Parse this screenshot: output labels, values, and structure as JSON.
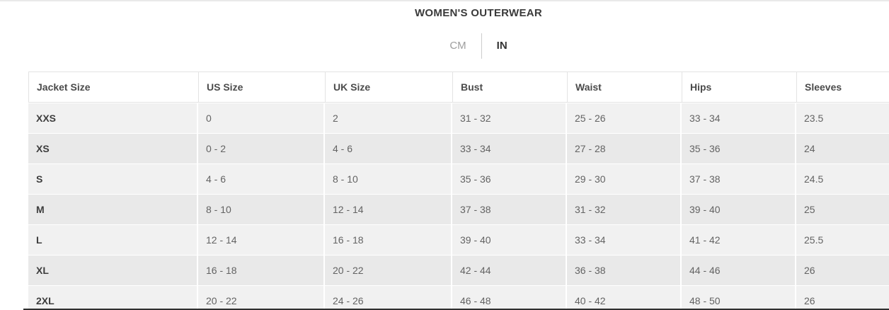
{
  "header": {
    "title": "WOMEN'S OUTERWEAR"
  },
  "unit_toggle": {
    "options": [
      {
        "label": "CM",
        "active": false
      },
      {
        "label": "IN",
        "active": true
      }
    ]
  },
  "colors": {
    "active_unit_text": "#333333",
    "inactive_unit_text": "#9e9e9e",
    "row_stripe_light": "#f1f1f1",
    "row_stripe_dark": "#e9e9e9"
  },
  "size_table": {
    "columns": [
      "Jacket Size",
      "US Size",
      "UK Size",
      "Bust",
      "Waist",
      "Hips",
      "Sleeves"
    ],
    "rows": [
      {
        "size": "XXS",
        "us": "0",
        "uk": "2",
        "bust": "31 - 32",
        "waist": "25 - 26",
        "hips": "33 - 34",
        "sleeves": "23.5"
      },
      {
        "size": "XS",
        "us": "0 - 2",
        "uk": "4 - 6",
        "bust": "33 - 34",
        "waist": "27 - 28",
        "hips": "35 - 36",
        "sleeves": "24"
      },
      {
        "size": "S",
        "us": "4 - 6",
        "uk": "8 - 10",
        "bust": "35 - 36",
        "waist": "29 - 30",
        "hips": "37 - 38",
        "sleeves": "24.5"
      },
      {
        "size": "M",
        "us": "8 - 10",
        "uk": "12 - 14",
        "bust": "37 - 38",
        "waist": "31 - 32",
        "hips": "39 - 40",
        "sleeves": "25"
      },
      {
        "size": "L",
        "us": "12 - 14",
        "uk": "16 - 18",
        "bust": "39 - 40",
        "waist": "33 - 34",
        "hips": "41 - 42",
        "sleeves": "25.5"
      },
      {
        "size": "XL",
        "us": "16 - 18",
        "uk": "20 - 22",
        "bust": "42 - 44",
        "waist": "36 - 38",
        "hips": "44 - 46",
        "sleeves": "26"
      },
      {
        "size": "2XL",
        "us": "20 - 22",
        "uk": "24 - 26",
        "bust": "46 - 48",
        "waist": "40 - 42",
        "hips": "48 - 50",
        "sleeves": "26"
      }
    ]
  }
}
